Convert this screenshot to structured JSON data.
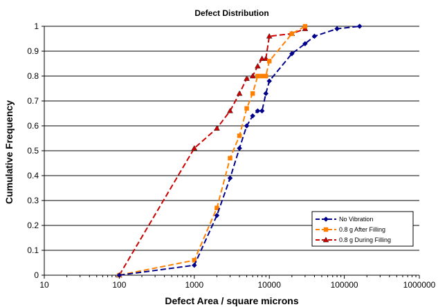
{
  "chart_data": {
    "type": "line",
    "title": "Defect Distribution",
    "xlabel": "Defect Area / square microns",
    "ylabel": "Cumulative Frequency",
    "x_scale": "log",
    "xlim": [
      10,
      1000000
    ],
    "ylim": [
      0,
      1
    ],
    "x_ticks": [
      "10",
      "100",
      "1000",
      "10000",
      "100000",
      "1000000"
    ],
    "y_ticks": [
      "0",
      "0.1",
      "0.2",
      "0.3",
      "0.4",
      "0.5",
      "0.6",
      "0.7",
      "0.8",
      "0.9",
      "1"
    ],
    "grid": "horizontal",
    "legend_position": "bottom-right",
    "series": [
      {
        "name": "No Vibration",
        "color": "#00008b",
        "marker": "diamond",
        "x": [
          100,
          1000,
          2000,
          3000,
          4000,
          5000,
          6000,
          7000,
          8000,
          9000,
          10000,
          20000,
          30000,
          40000,
          80000,
          160000
        ],
        "y": [
          0,
          0.04,
          0.24,
          0.39,
          0.51,
          0.6,
          0.64,
          0.66,
          0.66,
          0.73,
          0.78,
          0.89,
          0.93,
          0.96,
          0.99,
          1.0
        ]
      },
      {
        "name": "0.8 g After Filling",
        "color": "#ff8000",
        "marker": "square",
        "x": [
          100,
          1000,
          2000,
          3000,
          4000,
          5000,
          6000,
          7000,
          8000,
          9000,
          10000,
          20000,
          30000
        ],
        "y": [
          0,
          0.06,
          0.27,
          0.47,
          0.56,
          0.67,
          0.73,
          0.8,
          0.8,
          0.8,
          0.86,
          0.97,
          1.0
        ]
      },
      {
        "name": "0.8 g During Filling",
        "color": "#cc0000",
        "marker": "triangle",
        "x": [
          100,
          1000,
          2000,
          3000,
          4000,
          5000,
          6000,
          7000,
          8000,
          9000,
          10000,
          20000,
          30000
        ],
        "y": [
          0,
          0.51,
          0.59,
          0.66,
          0.73,
          0.79,
          0.8,
          0.84,
          0.87,
          0.87,
          0.96,
          0.97,
          0.99
        ]
      }
    ]
  }
}
